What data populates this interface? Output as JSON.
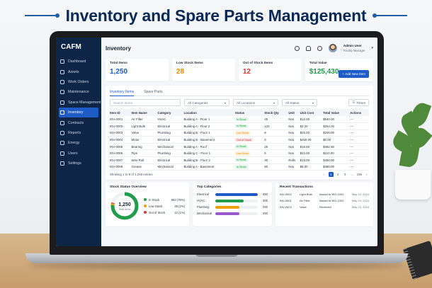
{
  "headline": "Inventory and Spare Parts Management",
  "sidebar": {
    "brand": "CAFM",
    "items": [
      {
        "label": "Dashboard",
        "icon": "grid-icon"
      },
      {
        "label": "Assets",
        "icon": "cube-icon"
      },
      {
        "label": "Work Orders",
        "icon": "wrench-icon"
      },
      {
        "label": "Maintenance",
        "icon": "tool-icon"
      },
      {
        "label": "Space Management",
        "icon": "building-icon"
      },
      {
        "label": "Inventory",
        "icon": "box-icon",
        "active": true
      },
      {
        "label": "Contracts",
        "icon": "document-icon"
      },
      {
        "label": "Reports",
        "icon": "chart-icon"
      },
      {
        "label": "Energy",
        "icon": "bolt-icon"
      },
      {
        "label": "Users",
        "icon": "users-icon"
      },
      {
        "label": "Settings",
        "icon": "gear-icon"
      }
    ]
  },
  "topbar": {
    "title": "Inventory",
    "user_name": "Admin User",
    "user_role": "Facility Manager"
  },
  "cards": [
    {
      "label": "Total Items",
      "value": "1,250",
      "color": "#1e5bc6"
    },
    {
      "label": "Low Stock Items",
      "value": "28",
      "color": "#f08c00"
    },
    {
      "label": "Out of Stock Items",
      "value": "12",
      "color": "#d93636"
    },
    {
      "label": "Total Value",
      "value": "$125,430",
      "color": "#1f9d4a"
    }
  ],
  "add_button": "+ Add New Item",
  "tabs": [
    "Inventory Items",
    "Spare Parts"
  ],
  "filters": {
    "search_placeholder": "Search items...",
    "category": "All Categories",
    "location": "All Locations",
    "status": "All Status",
    "filters_button": "Filters"
  },
  "table": {
    "headers": [
      "Item ID",
      "Item Name",
      "Category",
      "Location",
      "Status",
      "Stock Qty",
      "Unit",
      "Unit Cost",
      "Total Value",
      "Actions"
    ],
    "rows": [
      {
        "id": "INV-0001",
        "name": "Air Filter",
        "category": "HVAC",
        "location": "Building A - Floor 1",
        "status": "In Stock",
        "qty": "45",
        "unit": "Nos",
        "cost": "$12.00",
        "total": "$540.00"
      },
      {
        "id": "INV-0002",
        "name": "Light Bulb",
        "category": "Electrical",
        "location": "Building A - Floor 2",
        "status": "In Stock",
        "qty": "120",
        "unit": "Nos",
        "cost": "$2.20",
        "total": "$264.00"
      },
      {
        "id": "INV-0003",
        "name": "Valve",
        "category": "Plumbing",
        "location": "Building B - Floor 1",
        "status": "Low Stock",
        "qty": "8",
        "unit": "Nos",
        "cost": "$25.00",
        "total": "$200.00"
      },
      {
        "id": "INV-0004",
        "name": "Motor",
        "category": "Electrical",
        "location": "Building B - Basement",
        "status": "Out of Stock",
        "qty": "0",
        "unit": "Nos",
        "cost": "$450.00",
        "total": "$0.00"
      },
      {
        "id": "INV-0005",
        "name": "Bearing",
        "category": "Mechanical",
        "location": "Building A - Roof",
        "status": "In Stock",
        "qty": "25",
        "unit": "Nos",
        "cost": "$18.50",
        "total": "$462.50"
      },
      {
        "id": "INV-0006",
        "name": "Pipe",
        "category": "Plumbing",
        "location": "Building C - Floor 1",
        "status": "Low Stock",
        "qty": "5",
        "unit": "Nos",
        "cost": "$22.00",
        "total": "$110.00"
      },
      {
        "id": "INV-0007",
        "name": "Wire Roll",
        "category": "Electrical",
        "location": "Building B - Floor 2",
        "status": "In Stock",
        "qty": "30",
        "unit": "Rolls",
        "cost": "$15.00",
        "total": "$450.00"
      },
      {
        "id": "INV-0008",
        "name": "Grease",
        "category": "Mechanical",
        "location": "Building A - Basement",
        "status": "In Stock",
        "qty": "60",
        "unit": "Nos",
        "cost": "$8.00",
        "total": "$480.00"
      }
    ]
  },
  "pager": {
    "summary": "Showing 1 to 8 of 1,250 entries",
    "pages": [
      "1",
      "2",
      "3",
      "...",
      "156"
    ]
  },
  "stock_overview": {
    "title": "Stock Status Overview",
    "center_value": "1,250",
    "center_label": "Total items",
    "items": [
      {
        "label": "In Stock",
        "value": "953 (76%)",
        "color": "#1f9d4a",
        "pct": 76
      },
      {
        "label": "Low Stock",
        "value": "28 (2%)",
        "color": "#f0a000",
        "pct": 2
      },
      {
        "label": "Out of Stock",
        "value": "12 (1%)",
        "color": "#d93636",
        "pct": 1
      }
    ]
  },
  "top_categories": {
    "title": "Top Categories",
    "items": [
      {
        "label": "Electrical",
        "value": "450",
        "color": "#1e5bc6",
        "pct": 100
      },
      {
        "label": "HVAC",
        "value": "300",
        "color": "#1f9d4a",
        "pct": 67
      },
      {
        "label": "Plumbing",
        "value": "250",
        "color": "#f0a000",
        "pct": 56
      },
      {
        "label": "Mechanical",
        "value": "250",
        "color": "#9b59d0",
        "pct": 56
      }
    ]
  },
  "transactions": {
    "title": "Recent Transactions",
    "rows": [
      {
        "id": "INV-0002",
        "item": "Light Bulb",
        "action": "Issued to WO-1001",
        "date": "May 24, 2024"
      },
      {
        "id": "INV-0001",
        "item": "Air Filter",
        "action": "Issued to WO-1002",
        "date": "May 24, 2024"
      },
      {
        "id": "INV-0003",
        "item": "Valve",
        "action": "Received",
        "date": "May 23, 2024"
      }
    ]
  }
}
